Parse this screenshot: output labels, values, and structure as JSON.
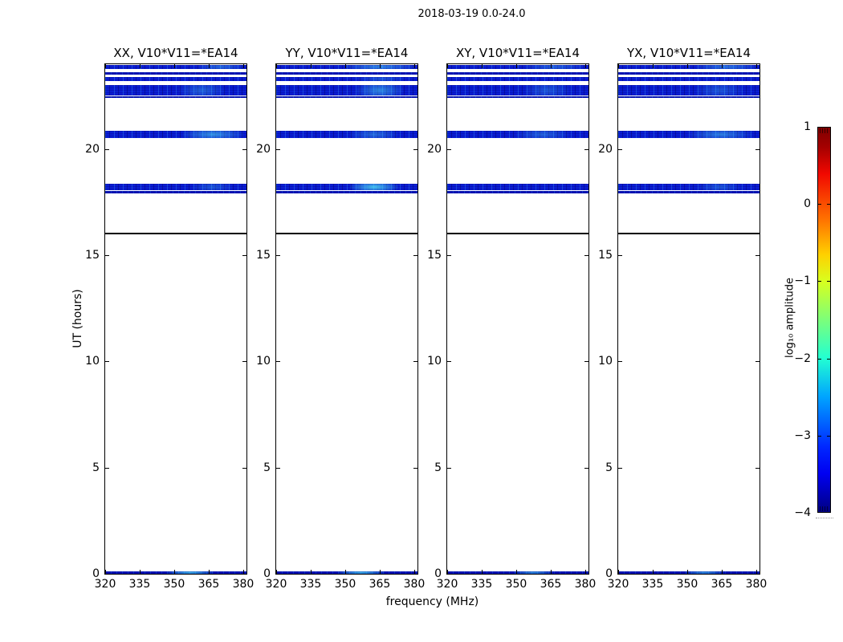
{
  "chart_data": {
    "type": "heatmap",
    "title": "2018-03-19 0.0-24.0",
    "xlabel": "frequency (MHz)",
    "ylabel": "UT (hours)",
    "x_ticks": [
      320,
      335,
      350,
      365,
      380
    ],
    "y_ticks": [
      20,
      15,
      10,
      5,
      0
    ],
    "xlim": [
      320,
      381.4
    ],
    "ylim": [
      0,
      24
    ],
    "grid": false,
    "panels": [
      {
        "title": "XX, V10*V11=*EA14",
        "highlights": [
          {
            "band": 0,
            "f0": 360,
            "f1": 380,
            "strength": 0.4
          },
          {
            "band": 3,
            "f0": 352,
            "f1": 372,
            "strength": 0.35
          },
          {
            "band": 5,
            "f0": 354,
            "f1": 380,
            "strength": 0.6
          },
          {
            "band": 6,
            "f0": 358,
            "f1": 375,
            "strength": 0.3
          },
          {
            "band": 9,
            "f0": 347,
            "f1": 367,
            "strength": 0.8
          }
        ]
      },
      {
        "title": "YY, V10*V11=*EA14",
        "highlights": [
          {
            "band": 0,
            "f0": 350,
            "f1": 380,
            "strength": 0.55
          },
          {
            "band": 2,
            "f0": 355,
            "f1": 376,
            "strength": 0.3
          },
          {
            "band": 3,
            "f0": 355,
            "f1": 375,
            "strength": 0.55
          },
          {
            "band": 5,
            "f0": 352,
            "f1": 373,
            "strength": 0.4
          },
          {
            "band": 6,
            "f0": 352,
            "f1": 373,
            "strength": 0.85
          },
          {
            "band": 9,
            "f0": 347,
            "f1": 367,
            "strength": 0.8
          }
        ]
      },
      {
        "title": "XY, V10*V11=*EA14",
        "highlights": [
          {
            "band": 0,
            "f0": 354,
            "f1": 379,
            "strength": 0.35
          },
          {
            "band": 3,
            "f0": 354,
            "f1": 373,
            "strength": 0.3
          },
          {
            "band": 5,
            "f0": 350,
            "f1": 373,
            "strength": 0.35
          },
          {
            "band": 9,
            "f0": 349,
            "f1": 366,
            "strength": 0.6
          }
        ]
      },
      {
        "title": "YX, V10*V11=*EA14",
        "highlights": [
          {
            "band": 0,
            "f0": 354,
            "f1": 380,
            "strength": 0.45
          },
          {
            "band": 3,
            "f0": 354,
            "f1": 374,
            "strength": 0.3
          },
          {
            "band": 5,
            "f0": 351,
            "f1": 378,
            "strength": 0.5
          },
          {
            "band": 6,
            "f0": 355,
            "f1": 373,
            "strength": 0.3
          },
          {
            "band": 9,
            "f0": 349,
            "f1": 366,
            "strength": 0.6
          }
        ]
      }
    ],
    "bands": [
      {
        "ut_start": 23.78,
        "ut_end": 23.95,
        "kind": "band"
      },
      {
        "ut_start": 23.5,
        "ut_end": 23.64,
        "kind": "line"
      },
      {
        "ut_start": 23.2,
        "ut_end": 23.38,
        "kind": "band"
      },
      {
        "ut_start": 22.52,
        "ut_end": 23.0,
        "kind": "band"
      },
      {
        "ut_start": 22.4,
        "ut_end": 22.48,
        "kind": "line"
      },
      {
        "ut_start": 20.52,
        "ut_end": 20.87,
        "kind": "band"
      },
      {
        "ut_start": 18.06,
        "ut_end": 18.35,
        "kind": "band"
      },
      {
        "ut_start": 17.93,
        "ut_end": 18.02,
        "kind": "line"
      },
      {
        "ut_start": 15.97,
        "ut_end": 16.08,
        "kind": "rule"
      },
      {
        "ut_start": 0.0,
        "ut_end": 0.1,
        "kind": "line"
      }
    ],
    "colorbar": {
      "label": "log₁₀ amplitude",
      "ticks": [
        1,
        0,
        -1,
        -2,
        -3,
        -4
      ],
      "vmin": -4,
      "vmax": 1,
      "colormap": "jet"
    },
    "colors": {
      "band": "#0a1dd2",
      "line": "#0411b0",
      "rule": "#000000",
      "highlight": "#50e1f5",
      "colorbar_top": "#800000",
      "colorbar_bottom": "#000082"
    }
  }
}
